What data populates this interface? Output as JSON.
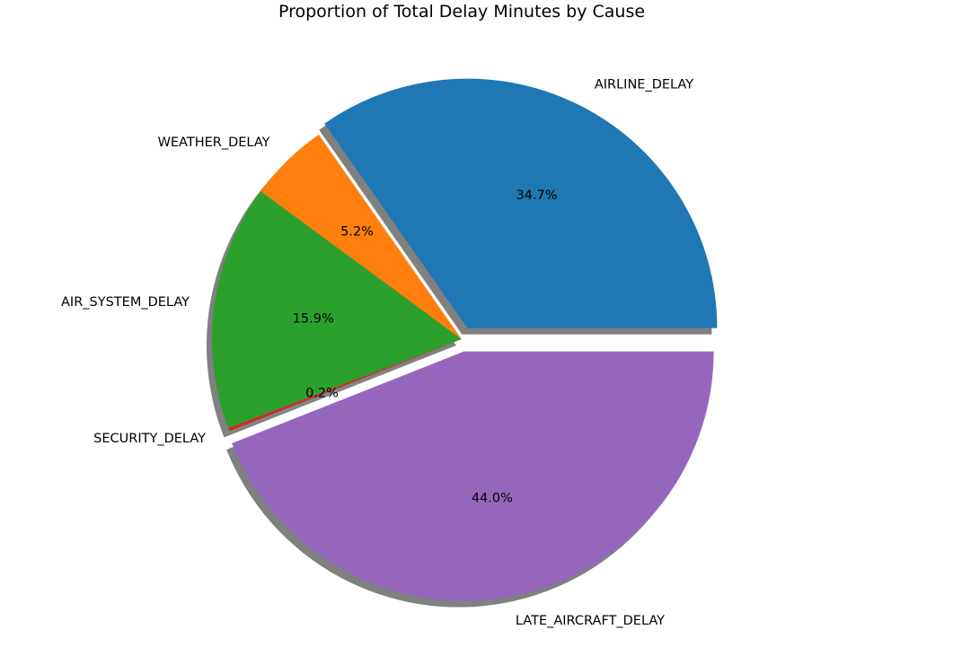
{
  "chart_data": {
    "type": "pie",
    "title": "Proportion of Total Delay Minutes by Cause",
    "slices": [
      {
        "label": "AIRLINE_DELAY",
        "value": 34.7,
        "pct_label": "34.7%",
        "color": "#1f77b4",
        "exploded": true
      },
      {
        "label": "WEATHER_DELAY",
        "value": 5.2,
        "pct_label": "5.2%",
        "color": "#ff7f0e",
        "exploded": false
      },
      {
        "label": "AIR_SYSTEM_DELAY",
        "value": 15.9,
        "pct_label": "15.9%",
        "color": "#2ca02c",
        "exploded": false
      },
      {
        "label": "SECURITY_DELAY",
        "value": 0.2,
        "pct_label": "0.2%",
        "color": "#d62728",
        "exploded": false
      },
      {
        "label": "LATE_AIRCRAFT_DELAY",
        "value": 44.0,
        "pct_label": "44.0%",
        "color": "#9467bd",
        "exploded": true
      }
    ],
    "start_angle_deg": 0,
    "direction": "counterclockwise",
    "shadow": true,
    "shadow_color": "#808080"
  }
}
